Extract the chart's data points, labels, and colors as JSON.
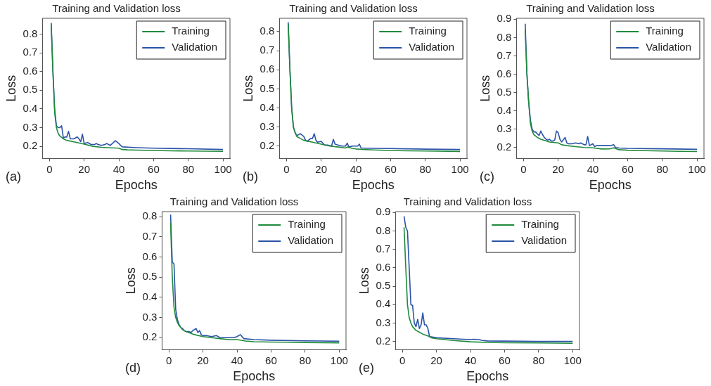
{
  "chart_data": [
    {
      "type": "line",
      "title": "Training and Validation loss",
      "xlabel": "Epochs",
      "ylabel": "Loss",
      "annotations": [
        "(a)"
      ],
      "xlim": [
        -4,
        104
      ],
      "xticks": [
        0,
        20,
        40,
        60,
        80,
        100
      ],
      "ylim": [
        0.135,
        0.885
      ],
      "yticks": [
        0.2,
        0.3,
        0.4,
        0.5,
        0.6,
        0.7,
        0.8
      ],
      "grid": false,
      "legend": "top right",
      "marker": "none",
      "line_style": "solid",
      "series": [
        {
          "name": "Training",
          "color": "#1f8a3c",
          "x": [
            1,
            2,
            3,
            4,
            5,
            6,
            8,
            10,
            15,
            20,
            25,
            30,
            35,
            40,
            42,
            45,
            50,
            60,
            70,
            80,
            90,
            100
          ],
          "values": [
            0.85,
            0.6,
            0.38,
            0.3,
            0.27,
            0.255,
            0.24,
            0.232,
            0.222,
            0.212,
            0.2,
            0.195,
            0.192,
            0.19,
            0.183,
            0.181,
            0.18,
            0.178,
            0.176,
            0.175,
            0.174,
            0.173
          ]
        },
        {
          "name": "Validation",
          "color": "#2a52a8",
          "x": [
            1,
            2,
            3,
            4,
            5,
            6,
            7,
            8,
            9,
            10,
            11,
            12,
            14,
            16,
            17,
            18,
            19,
            20,
            22,
            24,
            26,
            27,
            28,
            30,
            32,
            33,
            35,
            38,
            40,
            41,
            42,
            50,
            60,
            80,
            100
          ],
          "values": [
            0.86,
            0.6,
            0.4,
            0.31,
            0.3,
            0.3,
            0.31,
            0.245,
            0.25,
            0.25,
            0.28,
            0.24,
            0.24,
            0.25,
            0.24,
            0.225,
            0.265,
            0.215,
            0.22,
            0.21,
            0.21,
            0.215,
            0.21,
            0.205,
            0.21,
            0.215,
            0.205,
            0.23,
            0.215,
            0.205,
            0.197,
            0.193,
            0.19,
            0.187,
            0.183
          ]
        }
      ]
    },
    {
      "type": "line",
      "title": "Training and Validation loss",
      "xlabel": "Epochs",
      "ylabel": "Loss",
      "annotations": [
        "(b)"
      ],
      "xlim": [
        -4,
        104
      ],
      "xticks": [
        0,
        20,
        40,
        60,
        80,
        100
      ],
      "ylim": [
        0.135,
        0.87
      ],
      "yticks": [
        0.2,
        0.3,
        0.4,
        0.5,
        0.6,
        0.7,
        0.8
      ],
      "grid": false,
      "legend": "top right",
      "marker": "none",
      "line_style": "solid",
      "series": [
        {
          "name": "Training",
          "color": "#1f8a3c",
          "x": [
            1,
            2,
            3,
            4,
            5,
            6,
            8,
            10,
            15,
            20,
            25,
            30,
            34,
            35,
            38,
            40,
            45,
            50,
            60,
            70,
            80,
            100
          ],
          "values": [
            0.84,
            0.6,
            0.4,
            0.3,
            0.27,
            0.25,
            0.24,
            0.23,
            0.22,
            0.21,
            0.2,
            0.195,
            0.19,
            0.195,
            0.188,
            0.185,
            0.182,
            0.18,
            0.177,
            0.175,
            0.174,
            0.172
          ]
        },
        {
          "name": "Validation",
          "color": "#2a52a8",
          "x": [
            1,
            2,
            3,
            4,
            5,
            6,
            7,
            8,
            10,
            11,
            12,
            14,
            15,
            16,
            17,
            18,
            20,
            22,
            24,
            26,
            27,
            28,
            30,
            32,
            34,
            35,
            36,
            38,
            40,
            41,
            42,
            43,
            50,
            60,
            80,
            100
          ],
          "values": [
            0.85,
            0.6,
            0.4,
            0.3,
            0.27,
            0.255,
            0.26,
            0.265,
            0.25,
            0.23,
            0.225,
            0.24,
            0.24,
            0.265,
            0.23,
            0.22,
            0.225,
            0.205,
            0.205,
            0.2,
            0.235,
            0.21,
            0.205,
            0.2,
            0.2,
            0.215,
            0.195,
            0.2,
            0.2,
            0.2,
            0.21,
            0.19,
            0.188,
            0.187,
            0.184,
            0.182
          ]
        }
      ]
    },
    {
      "type": "line",
      "title": "Training and Validation loss",
      "xlabel": "Epochs",
      "ylabel": "Loss",
      "annotations": [
        "(c)"
      ],
      "xlim": [
        -4,
        104
      ],
      "xticks": [
        0,
        20,
        40,
        60,
        80,
        100
      ],
      "ylim": [
        0.14,
        0.905
      ],
      "yticks": [
        0.2,
        0.3,
        0.4,
        0.5,
        0.6,
        0.7,
        0.8,
        0.9
      ],
      "grid": false,
      "legend": "top right",
      "marker": "none",
      "line_style": "solid",
      "series": [
        {
          "name": "Training",
          "color": "#1f8a3c",
          "x": [
            1,
            2,
            3,
            4,
            5,
            6,
            8,
            10,
            15,
            20,
            22,
            25,
            30,
            35,
            40,
            45,
            50,
            52,
            55,
            60,
            70,
            80,
            90,
            100
          ],
          "values": [
            0.84,
            0.6,
            0.45,
            0.33,
            0.29,
            0.27,
            0.255,
            0.245,
            0.23,
            0.225,
            0.215,
            0.21,
            0.205,
            0.2,
            0.198,
            0.192,
            0.193,
            0.198,
            0.188,
            0.185,
            0.183,
            0.181,
            0.179,
            0.178
          ]
        },
        {
          "name": "Validation",
          "color": "#2a52a8",
          "x": [
            1,
            2,
            3,
            4,
            5,
            6,
            7,
            8,
            9,
            10,
            11,
            12,
            13,
            14,
            15,
            16,
            17,
            18,
            19,
            20,
            21,
            22,
            24,
            25,
            26,
            28,
            30,
            32,
            33,
            35,
            36,
            37,
            38,
            40,
            41,
            42,
            45,
            48,
            50,
            52,
            53,
            55,
            60,
            80,
            100
          ],
          "values": [
            0.875,
            0.6,
            0.45,
            0.35,
            0.3,
            0.285,
            0.285,
            0.275,
            0.265,
            0.29,
            0.27,
            0.255,
            0.245,
            0.24,
            0.245,
            0.235,
            0.235,
            0.24,
            0.29,
            0.28,
            0.245,
            0.23,
            0.255,
            0.225,
            0.22,
            0.22,
            0.225,
            0.22,
            0.225,
            0.215,
            0.215,
            0.26,
            0.21,
            0.22,
            0.205,
            0.21,
            0.21,
            0.21,
            0.21,
            0.215,
            0.2,
            0.197,
            0.195,
            0.193,
            0.19
          ]
        }
      ]
    },
    {
      "type": "line",
      "title": "Training and Validation loss",
      "xlabel": "Epochs",
      "ylabel": "Loss",
      "annotations": [
        "(d)"
      ],
      "xlim": [
        -4,
        104
      ],
      "xticks": [
        0,
        20,
        40,
        60,
        80,
        100
      ],
      "ylim": [
        0.14,
        0.825
      ],
      "yticks": [
        0.2,
        0.3,
        0.4,
        0.5,
        0.6,
        0.7,
        0.8
      ],
      "grid": false,
      "legend": "top right",
      "marker": "none",
      "line_style": "solid",
      "series": [
        {
          "name": "Training",
          "color": "#1f8a3c",
          "x": [
            1,
            2,
            3,
            4,
            5,
            6,
            8,
            10,
            15,
            20,
            25,
            30,
            35,
            40,
            45,
            50,
            60,
            70,
            80,
            90,
            100
          ],
          "values": [
            0.77,
            0.5,
            0.35,
            0.3,
            0.275,
            0.26,
            0.24,
            0.23,
            0.215,
            0.205,
            0.2,
            0.195,
            0.19,
            0.19,
            0.183,
            0.18,
            0.178,
            0.177,
            0.176,
            0.175,
            0.174
          ]
        },
        {
          "name": "Validation",
          "color": "#2a52a8",
          "x": [
            1,
            2,
            3,
            4,
            5,
            6,
            7,
            8,
            9,
            10,
            12,
            13,
            14,
            15,
            16,
            17,
            18,
            19,
            20,
            22,
            25,
            28,
            30,
            35,
            38,
            40,
            42,
            44,
            50,
            60,
            80,
            90,
            100
          ],
          "values": [
            0.81,
            0.575,
            0.565,
            0.34,
            0.29,
            0.265,
            0.25,
            0.245,
            0.235,
            0.23,
            0.23,
            0.225,
            0.235,
            0.24,
            0.245,
            0.225,
            0.235,
            0.215,
            0.21,
            0.21,
            0.205,
            0.21,
            0.2,
            0.2,
            0.2,
            0.205,
            0.215,
            0.195,
            0.19,
            0.187,
            0.184,
            0.183,
            0.182
          ]
        }
      ]
    },
    {
      "type": "line",
      "title": "Training and Validation loss",
      "xlabel": "Epochs",
      "ylabel": "Loss",
      "annotations": [
        "(e)"
      ],
      "xlim": [
        -4,
        104
      ],
      "xticks": [
        0,
        20,
        40,
        60,
        80,
        100
      ],
      "ylim": [
        0.155,
        0.905
      ],
      "yticks": [
        0.2,
        0.3,
        0.4,
        0.5,
        0.6,
        0.7,
        0.8,
        0.9
      ],
      "grid": false,
      "legend": "top right",
      "marker": "none",
      "line_style": "solid",
      "series": [
        {
          "name": "Training",
          "color": "#1f8a3c",
          "x": [
            1,
            2,
            3,
            4,
            5,
            6,
            8,
            10,
            12,
            15,
            17,
            20,
            25,
            30,
            40,
            50,
            60,
            80,
            100
          ],
          "values": [
            0.82,
            0.6,
            0.4,
            0.33,
            0.3,
            0.28,
            0.26,
            0.25,
            0.24,
            0.23,
            0.22,
            0.215,
            0.21,
            0.205,
            0.198,
            0.195,
            0.193,
            0.192,
            0.19
          ]
        },
        {
          "name": "Validation",
          "color": "#2a52a8",
          "x": [
            1,
            2,
            3,
            4,
            5,
            6,
            7,
            8,
            9,
            10,
            11,
            12,
            13,
            14,
            15,
            16,
            17,
            20,
            30,
            40,
            42,
            45,
            47,
            50,
            60,
            80,
            100
          ],
          "values": [
            0.88,
            0.82,
            0.8,
            0.6,
            0.4,
            0.395,
            0.3,
            0.28,
            0.32,
            0.27,
            0.29,
            0.355,
            0.29,
            0.29,
            0.27,
            0.225,
            0.225,
            0.22,
            0.215,
            0.21,
            0.212,
            0.21,
            0.205,
            0.203,
            0.202,
            0.2,
            0.2
          ]
        }
      ]
    }
  ]
}
